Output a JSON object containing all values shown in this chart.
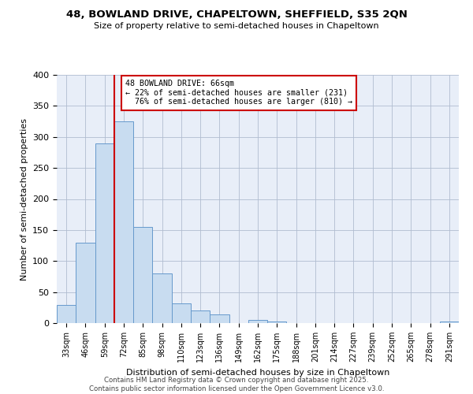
{
  "title": "48, BOWLAND DRIVE, CHAPELTOWN, SHEFFIELD, S35 2QN",
  "subtitle": "Size of property relative to semi-detached houses in Chapeltown",
  "xlabel": "Distribution of semi-detached houses by size in Chapeltown",
  "ylabel": "Number of semi-detached properties",
  "bar_labels": [
    "33sqm",
    "46sqm",
    "59sqm",
    "72sqm",
    "85sqm",
    "98sqm",
    "110sqm",
    "123sqm",
    "136sqm",
    "149sqm",
    "162sqm",
    "175sqm",
    "188sqm",
    "201sqm",
    "214sqm",
    "227sqm",
    "239sqm",
    "252sqm",
    "265sqm",
    "278sqm",
    "291sqm"
  ],
  "bar_values": [
    29,
    130,
    289,
    325,
    155,
    80,
    32,
    20,
    14,
    0,
    5,
    3,
    0,
    0,
    0,
    0,
    0,
    0,
    0,
    0,
    2
  ],
  "bar_color": "#c8dcf0",
  "bar_edge_color": "#6699cc",
  "property_sqm": 66,
  "property_label": "48 BOWLAND DRIVE: 66sqm",
  "smaller_pct": 22,
  "smaller_count": 231,
  "larger_pct": 76,
  "larger_count": 810,
  "annotation_box_color": "#ffffff",
  "annotation_box_edge": "#cc0000",
  "line_color": "#cc0000",
  "ylim": [
    0,
    400
  ],
  "yticks": [
    0,
    50,
    100,
    150,
    200,
    250,
    300,
    350,
    400
  ],
  "bg_color": "#e8eef8",
  "footer1": "Contains HM Land Registry data © Crown copyright and database right 2025.",
  "footer2": "Contains public sector information licensed under the Open Government Licence v3.0."
}
